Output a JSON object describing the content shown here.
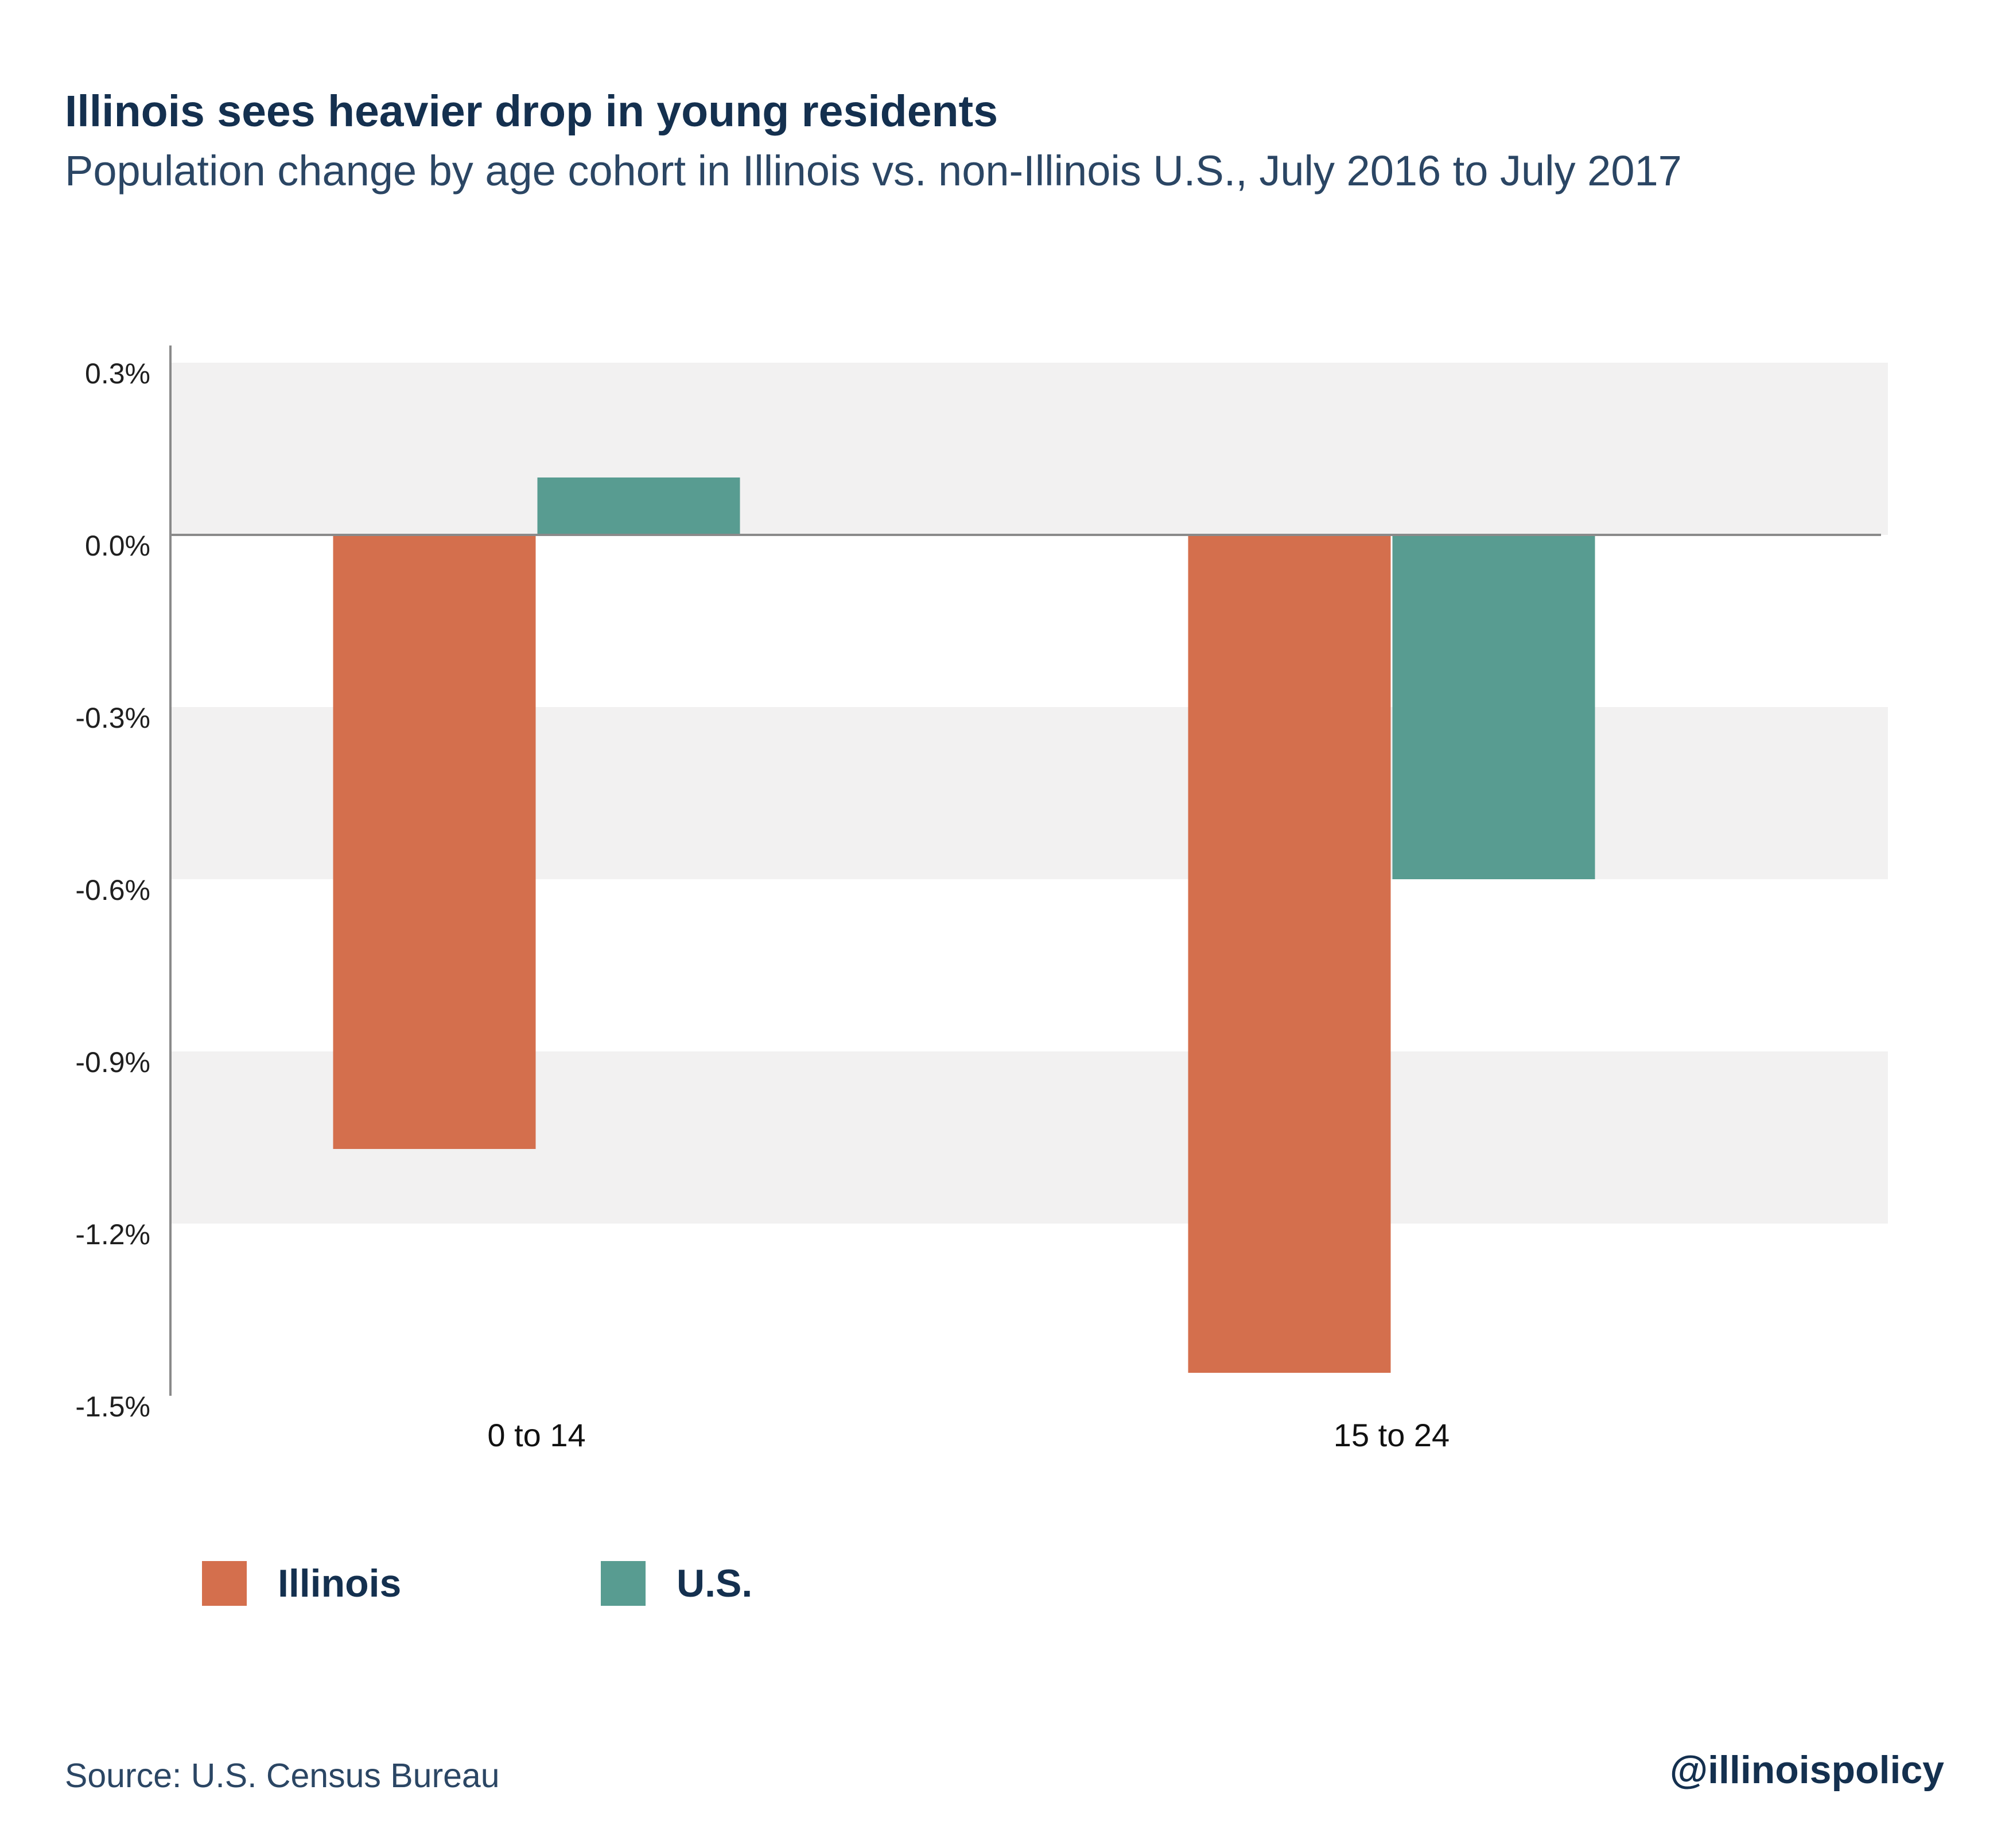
{
  "header": {
    "title": "Illinois sees heavier drop in young residents",
    "subtitle": "Population change by age cohort in Illinois vs. non-Illinois U.S., July 2016 to July 2017"
  },
  "footer": {
    "source": "Source: U.S. Census Bureau",
    "handle": "@illinoispolicy"
  },
  "colors": {
    "illinois": "#d46f4d",
    "us": "#589c91",
    "band": "#f2f1f1",
    "axis": "#8a8a8a",
    "title": "#14304f"
  },
  "chart_data": {
    "type": "bar",
    "categories": [
      "0 to 14",
      "15 to 24"
    ],
    "series": [
      {
        "name": "Illinois",
        "values": [
          -1.07,
          -1.46
        ]
      },
      {
        "name": "U.S.",
        "values": [
          0.1,
          -0.6
        ]
      }
    ],
    "yticks": [
      0.3,
      0.0,
      -0.3,
      -0.6,
      -0.9,
      -1.2,
      -1.5
    ],
    "ytick_labels": [
      "0.3%",
      "0.0%",
      "-0.3%",
      "-0.6%",
      "-0.9%",
      "-1.2%",
      "-1.5%"
    ],
    "ylim": [
      -1.5,
      0.3
    ],
    "grid": "alternating horizontal bands",
    "legend_position": "bottom-left"
  }
}
